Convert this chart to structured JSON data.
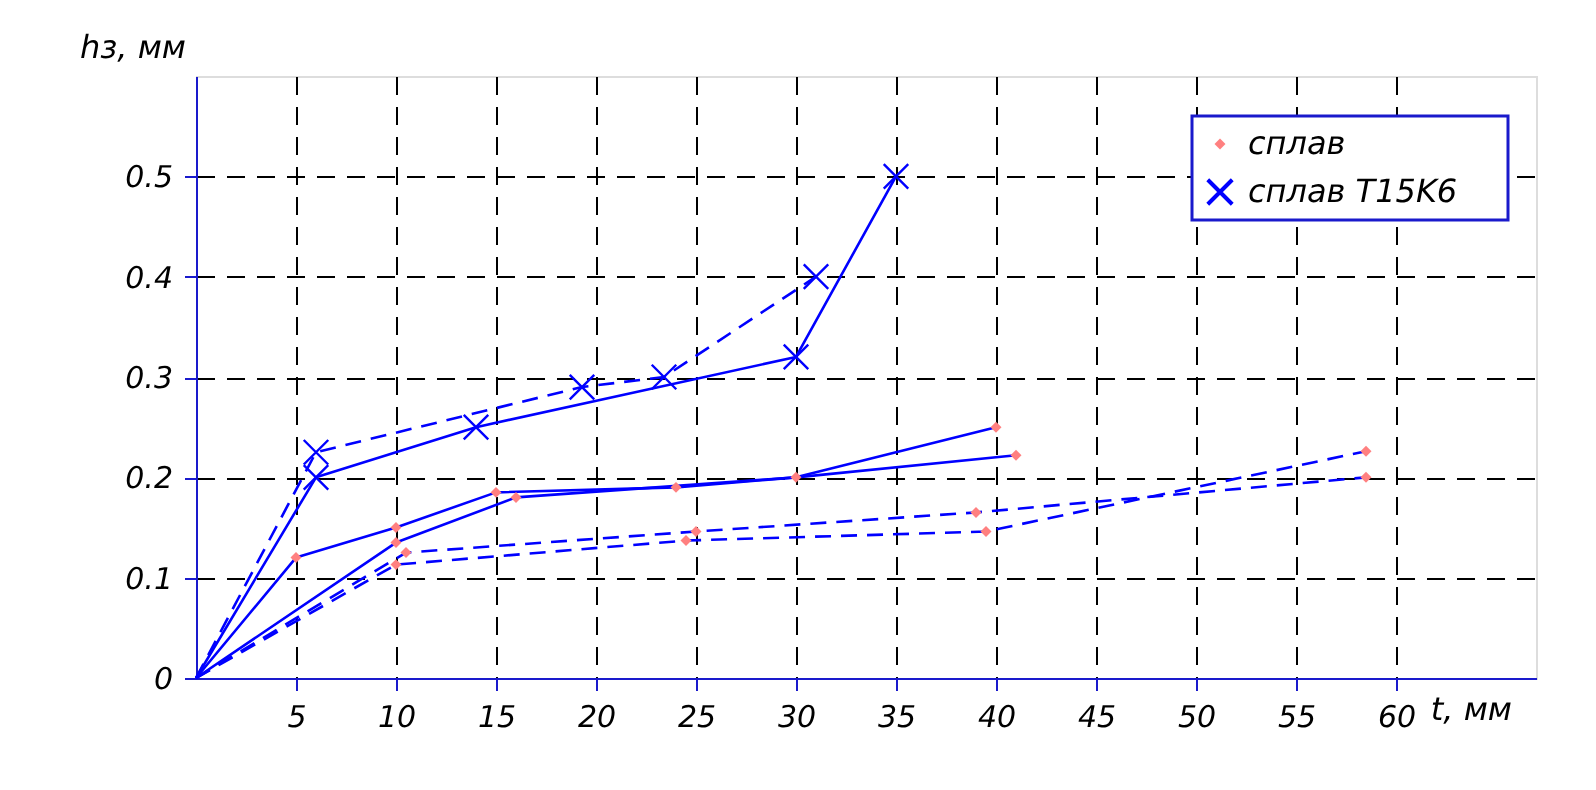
{
  "chart_data": {
    "type": "line",
    "xlabel": "t, мм",
    "ylabel": "hз, мм",
    "xlim": [
      0,
      67
    ],
    "ylim": [
      0,
      0.6
    ],
    "xticks": [
      5,
      10,
      15,
      20,
      25,
      30,
      35,
      40,
      45,
      50,
      55,
      60
    ],
    "yticks": [
      {
        "value": 0,
        "label": "0"
      },
      0.1,
      0.2,
      0.3,
      0.4,
      0.5
    ],
    "grid": true,
    "legend": "top right",
    "series": [
      {
        "color": "#0000ff",
        "line_style": "solid",
        "x": [
          0,
          6,
          14,
          30,
          35
        ],
        "values": [
          0,
          0.2,
          0.25,
          0.32,
          0.5
        ]
      },
      {
        "color": "#0000ff",
        "line_style": "dashed",
        "x": [
          0,
          6,
          19.3,
          23.4,
          31
        ],
        "values": [
          0,
          0.225,
          0.29,
          0.3,
          0.4
        ]
      },
      {
        "color": "#0000ff",
        "line_style": "solid",
        "x": [
          0,
          5,
          10,
          15,
          24,
          30,
          40
        ],
        "values": [
          0,
          0.12,
          0.15,
          0.185,
          0.19,
          0.2,
          0.25
        ]
      },
      {
        "color": "#0000ff",
        "line_style": "solid",
        "x": [
          0,
          10,
          16,
          30,
          41
        ],
        "values": [
          0,
          0.135,
          0.18,
          0.2,
          0.222
        ]
      },
      {
        "color": "#0000ff",
        "line_style": "dashed",
        "x": [
          0,
          10.5,
          25,
          39,
          58.5
        ],
        "values": [
          0,
          0.125,
          0.146,
          0.165,
          0.2
        ]
      },
      {
        "color": "#0000ff",
        "line_style": "dashed",
        "x": [
          0,
          10,
          24.5,
          39.5,
          58.5
        ],
        "values": [
          0,
          0.113,
          0.137,
          0.146,
          0.226
        ]
      },
      {
        "type": "scatter",
        "name": "сплав",
        "color": "#ff8080",
        "marker": "diamond",
        "x": [
          5,
          10,
          15,
          24,
          30,
          40,
          10,
          16,
          41,
          10.5,
          25,
          39,
          58.5,
          10,
          24.5,
          39.5,
          58.5
        ],
        "values": [
          0.12,
          0.15,
          0.185,
          0.19,
          0.2,
          0.25,
          0.135,
          0.18,
          0.222,
          0.125,
          0.146,
          0.165,
          0.2,
          0.113,
          0.137,
          0.146,
          0.226
        ]
      },
      {
        "type": "scatter",
        "name": "сплав T15K6",
        "color": "#0000ff",
        "marker": "cross",
        "x": [
          6,
          14,
          30,
          35,
          6,
          19.3,
          23.4,
          31
        ],
        "values": [
          0.2,
          0.25,
          0.32,
          0.5,
          0.225,
          0.29,
          0.3,
          0.4
        ]
      }
    ]
  }
}
